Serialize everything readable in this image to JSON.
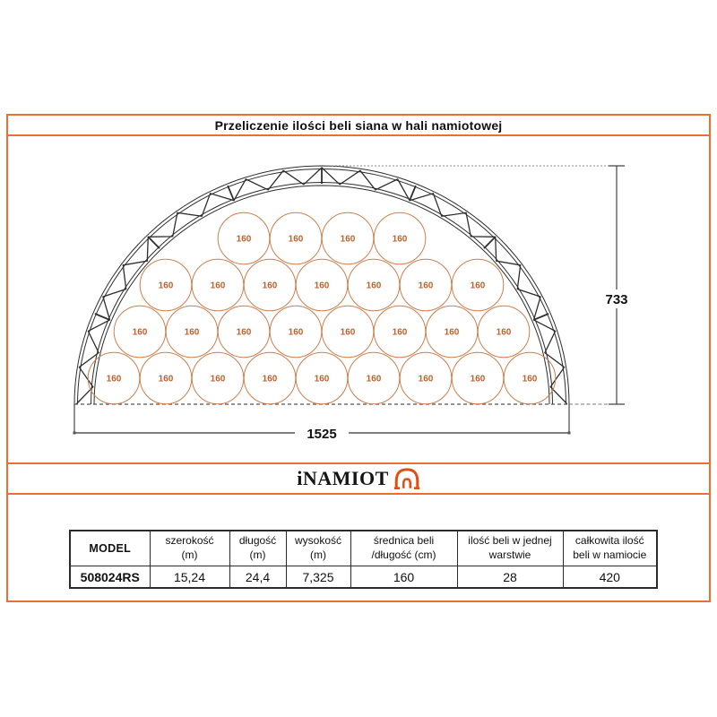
{
  "title": "Przeliczenie ilości beli siana w hali namiotowej",
  "logo": {
    "text": "iNAMIOT",
    "icon": "tent-arch-icon"
  },
  "colors": {
    "frame_orange": "#EC6F30",
    "truss_black": "#2E2E2E",
    "dimension_gray": "#474747",
    "bale_stroke": "#CF7E4E",
    "bale_label_orange": "#C2602C",
    "logo_orange": "#E84C11",
    "table_border": "#2B2B2B"
  },
  "diagram": {
    "height_label": "733",
    "width_label": "1525",
    "bale_label": "160",
    "rows": [
      {
        "count": 4
      },
      {
        "count": 7
      },
      {
        "count": 8
      },
      {
        "count": 9
      }
    ],
    "bales_total_shown": 28
  },
  "table": {
    "columns": [
      {
        "line1": "MODEL",
        "line2": ""
      },
      {
        "line1": "szerokość",
        "line2": "(m)"
      },
      {
        "line1": "długość",
        "line2": "(m)"
      },
      {
        "line1": "wysokość",
        "line2": "(m)"
      },
      {
        "line1": "średnica beli",
        "line2": "/długość (cm)"
      },
      {
        "line1": "ilość beli w jednej",
        "line2": "warstwie"
      },
      {
        "line1": "całkowita ilość",
        "line2": "beli w namiocie"
      }
    ],
    "rows": [
      [
        "508024RS",
        "15,24",
        "24,4",
        "7,325",
        "160",
        "28",
        "420"
      ]
    ]
  }
}
